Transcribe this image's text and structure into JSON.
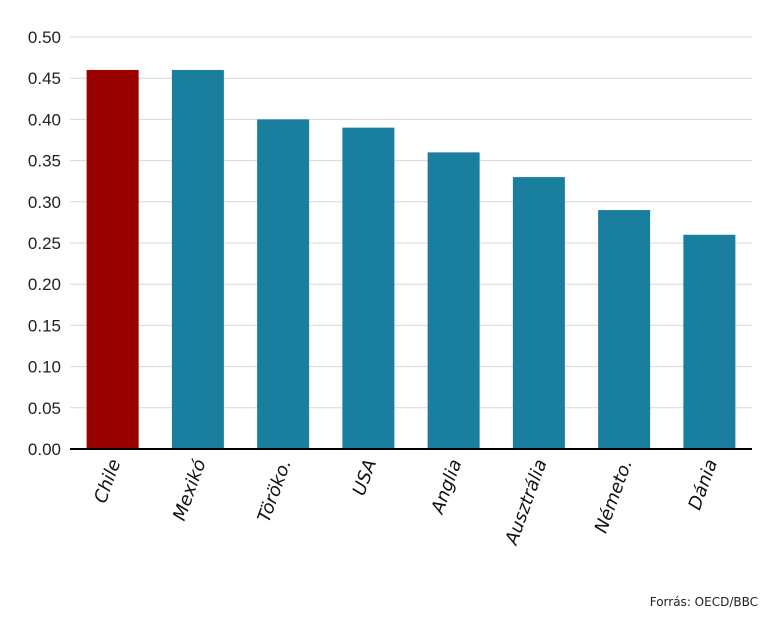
{
  "chart_data": {
    "type": "bar",
    "categories": [
      "Chile",
      "Mexikó",
      "Töröko.",
      "USA",
      "Anglia",
      "Ausztrália",
      "Németo.",
      "Dánia"
    ],
    "values": [
      0.46,
      0.46,
      0.4,
      0.39,
      0.36,
      0.33,
      0.29,
      0.26
    ],
    "yticks": [
      "0.00",
      "0.05",
      "0.10",
      "0.15",
      "0.20",
      "0.25",
      "0.30",
      "0.35",
      "0.40",
      "0.45",
      "0.50"
    ],
    "ylim": [
      0,
      0.5
    ],
    "grid": true,
    "highlight_category": "Chile",
    "colors": {
      "highlight": "#990000",
      "default": "#1a7f9e",
      "grid": "#d9d9d9",
      "axis": "#000000"
    }
  },
  "source": "Forrás: OECD/BBC"
}
